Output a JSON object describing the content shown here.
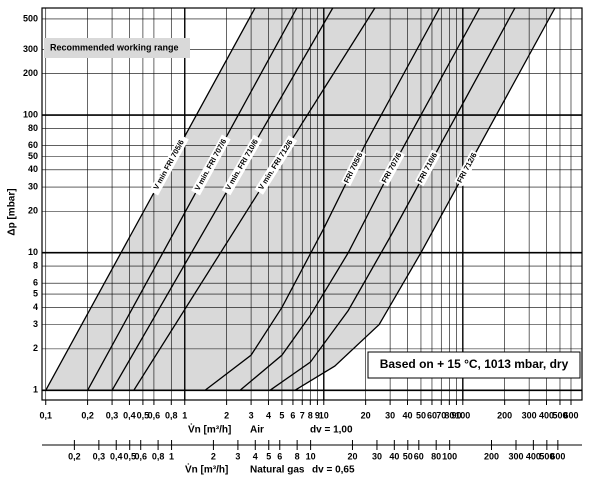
{
  "chart_data": {
    "type": "line",
    "ylabel": "Δp [mbar]",
    "xlabel": "V̇n [m³/h]",
    "xaxis_medium": "Air",
    "xaxis_density": "dv = 1,00",
    "x2label": "V̇n [m³/h]",
    "x2axis_medium": "Natural gas",
    "x2axis_density": "dv = 0,65",
    "range_label": "Recommended working range",
    "conditions": "Based on  + 15 °C, 1013 mbar, dry",
    "log_x": true,
    "log_y": true,
    "grid": true,
    "range_color": "#d9d9d9",
    "xlim": [
      0.094,
      720
    ],
    "ylim": [
      0.85,
      600
    ],
    "x2lim": [
      0.117,
      895
    ],
    "yticks": [
      1,
      2,
      3,
      4,
      5,
      6,
      8,
      10,
      20,
      30,
      40,
      50,
      60,
      80,
      100,
      200,
      300,
      500
    ],
    "xticks": [
      {
        "value": 0.1,
        "label": "0,1"
      },
      {
        "value": 0.2,
        "label": "0,2"
      },
      {
        "value": 0.3,
        "label": "0,3"
      },
      {
        "value": 0.4,
        "label": "0,4"
      },
      {
        "value": 0.5,
        "label": "0,5"
      },
      {
        "value": 0.6,
        "label": "0,6"
      },
      {
        "value": 0.8,
        "label": "0,8"
      },
      1,
      2,
      3,
      4,
      5,
      6,
      7,
      8,
      9,
      10,
      20,
      30,
      40,
      50,
      60,
      70,
      80,
      90,
      100,
      200,
      300,
      400,
      500,
      600
    ],
    "x2ticks": [
      {
        "value": 0.2,
        "label": "0,2"
      },
      {
        "value": 0.3,
        "label": "0,3"
      },
      {
        "value": 0.4,
        "label": "0,4"
      },
      {
        "value": 0.5,
        "label": "0,5"
      },
      {
        "value": 0.6,
        "label": "0,6"
      },
      {
        "value": 0.8,
        "label": "0,8"
      },
      1,
      2,
      3,
      4,
      5,
      6,
      8,
      10,
      20,
      30,
      40,
      50,
      60,
      80,
      100,
      200,
      300,
      400,
      500,
      600
    ],
    "series": [
      {
        "name": "V min FRI 705/6",
        "color": "#000000",
        "x": [
          0.1,
          3.2
        ],
        "values": [
          1,
          600
        ]
      },
      {
        "name": "V min. FRI 707/6",
        "color": "#000000",
        "x": [
          0.2,
          6.4
        ],
        "values": [
          1,
          600
        ]
      },
      {
        "name": "V min. FRI 710/6",
        "color": "#000000",
        "x": [
          0.3,
          11.6
        ],
        "values": [
          1,
          600
        ]
      },
      {
        "name": "V min. FRI 712/6",
        "color": "#000000",
        "x": [
          0.43,
          23.3
        ],
        "values": [
          1,
          600
        ]
      },
      {
        "name": "FRI 705/6",
        "color": "#000000",
        "x": [
          1.4,
          3,
          5,
          10,
          20,
          68
        ],
        "values": [
          1,
          1.8,
          4,
          15,
          62,
          600
        ]
      },
      {
        "name": "FRI 707/6",
        "color": "#000000",
        "x": [
          2.5,
          5,
          8,
          15,
          30,
          132
        ],
        "values": [
          1,
          1.8,
          3.5,
          10,
          39,
          600
        ]
      },
      {
        "name": "FRI 710/6",
        "color": "#000000",
        "x": [
          4.1,
          8,
          15,
          30,
          60,
          237
        ],
        "values": [
          1,
          1.6,
          3.8,
          13,
          47,
          600
        ]
      },
      {
        "name": "FRI 712/6",
        "color": "#000000",
        "x": [
          6.2,
          12,
          25,
          50,
          100,
          460
        ],
        "values": [
          1,
          1.5,
          3,
          10,
          36,
          600
        ]
      }
    ]
  }
}
